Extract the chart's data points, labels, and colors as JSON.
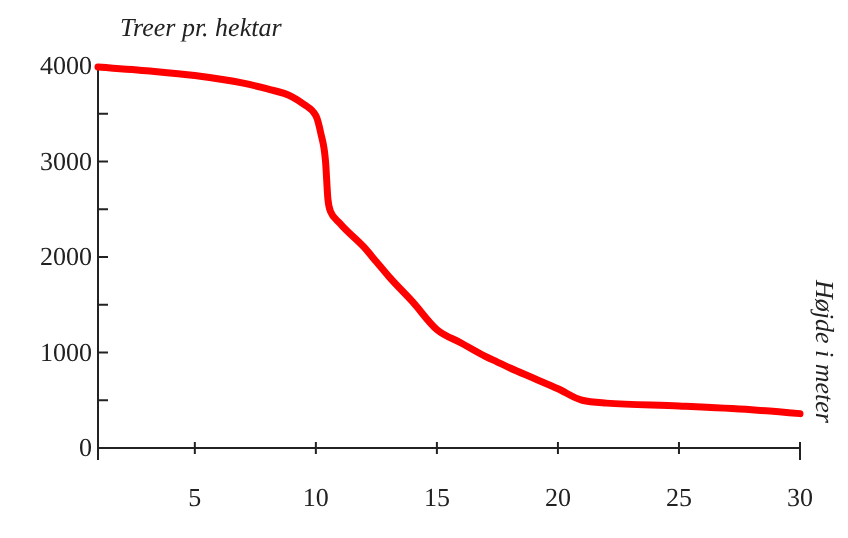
{
  "chart_data": {
    "type": "line",
    "annotations": [
      "Højde i meter"
    ],
    "ylabel": "Treer pr. hektar",
    "x": [
      1,
      3,
      5,
      7,
      8,
      9,
      9.5,
      10,
      10.2,
      10.4,
      10.5,
      10.6,
      11,
      12,
      12.5,
      13,
      14,
      15,
      16,
      17,
      17.5,
      18,
      19,
      20,
      21,
      22,
      25,
      28,
      30
    ],
    "series": [
      {
        "color": "#ff0000",
        "values": [
          3990,
          3950,
          3900,
          3820,
          3760,
          3680,
          3600,
          3480,
          3300,
          3000,
          2600,
          2480,
          2350,
          2100,
          1950,
          1800,
          1530,
          1240,
          1100,
          960,
          900,
          840,
          730,
          620,
          500,
          470,
          440,
          400,
          360
        ]
      }
    ],
    "xlim": [
      1,
      30
    ],
    "xticks": [
      5,
      10,
      15,
      20,
      25,
      30
    ],
    "ylim": [
      0,
      4000
    ],
    "yticks": [
      0,
      {
        "value": 500,
        "label": null
      },
      1000,
      {
        "value": 1500,
        "label": null
      },
      2000,
      {
        "value": 2500,
        "label": null
      },
      3000,
      {
        "value": 3500,
        "label": null
      },
      4000
    ],
    "grid": false,
    "marker": "none",
    "line_style": "solid"
  }
}
